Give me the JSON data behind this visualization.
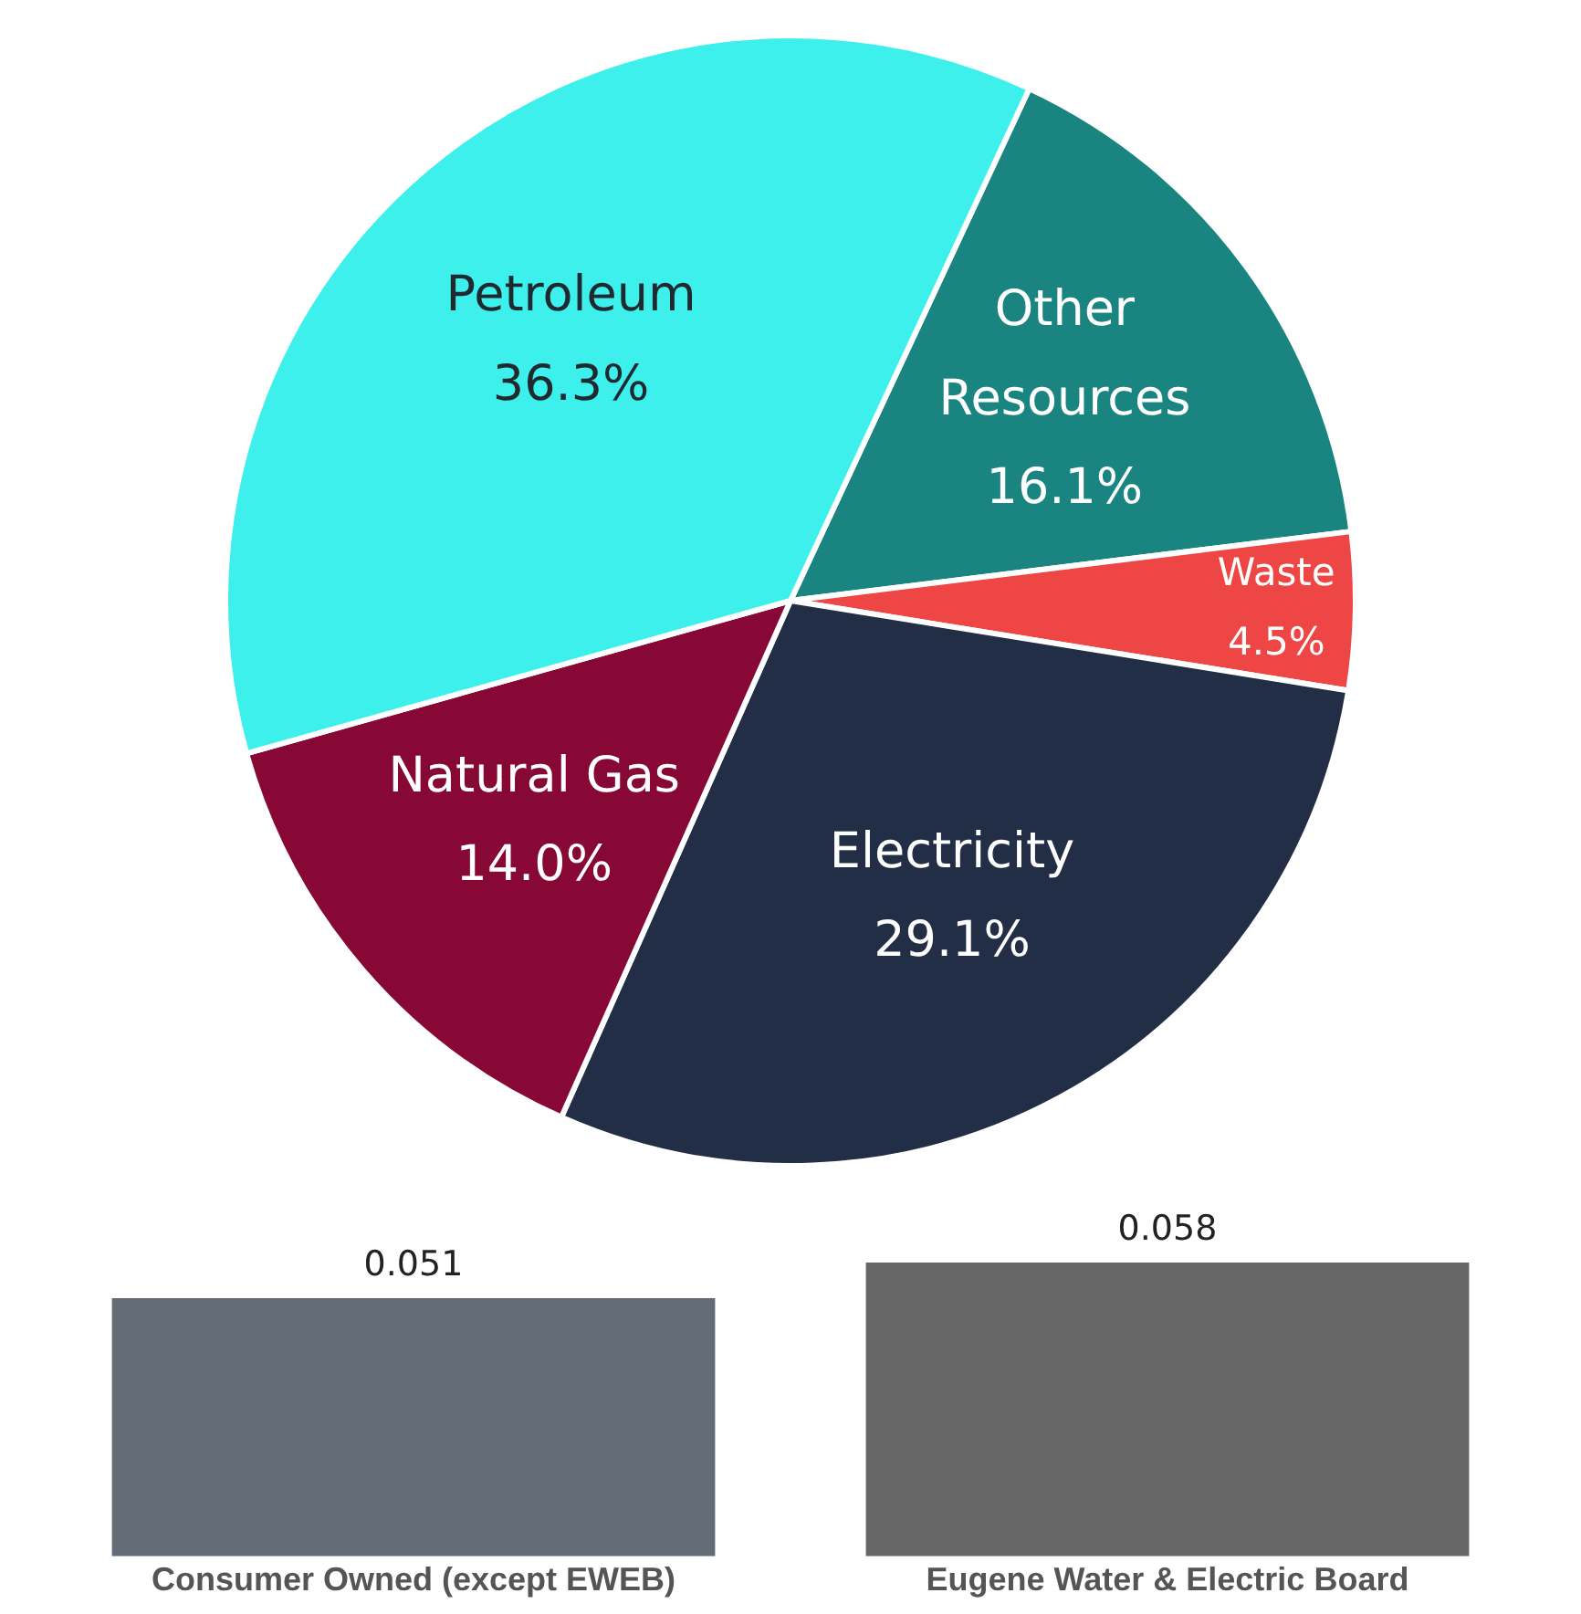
{
  "chart_data": [
    {
      "type": "pie",
      "categories": [
        "Other Resources",
        "Waste",
        "Electricity",
        "Natural Gas",
        "Petroleum"
      ],
      "values": [
        16.1,
        4.5,
        29.1,
        14.0,
        36.3
      ],
      "value_labels": [
        "16.1%",
        "4.5%",
        "29.1%",
        "14.0%",
        "36.3%"
      ],
      "colors": [
        "#1a8580",
        "#ee4545",
        "#222e45",
        "#870735",
        "#3ef0ec"
      ],
      "legend": false
    },
    {
      "type": "bar",
      "categories": [
        "Consumer Owned (except EWEB)",
        "Eugene Water & Electric Board"
      ],
      "values": [
        0.051,
        0.058
      ],
      "colors": [
        "#646c76",
        "#666666"
      ],
      "data_labels": true,
      "grid": false,
      "legend": false,
      "tick_labels": "x"
    }
  ]
}
